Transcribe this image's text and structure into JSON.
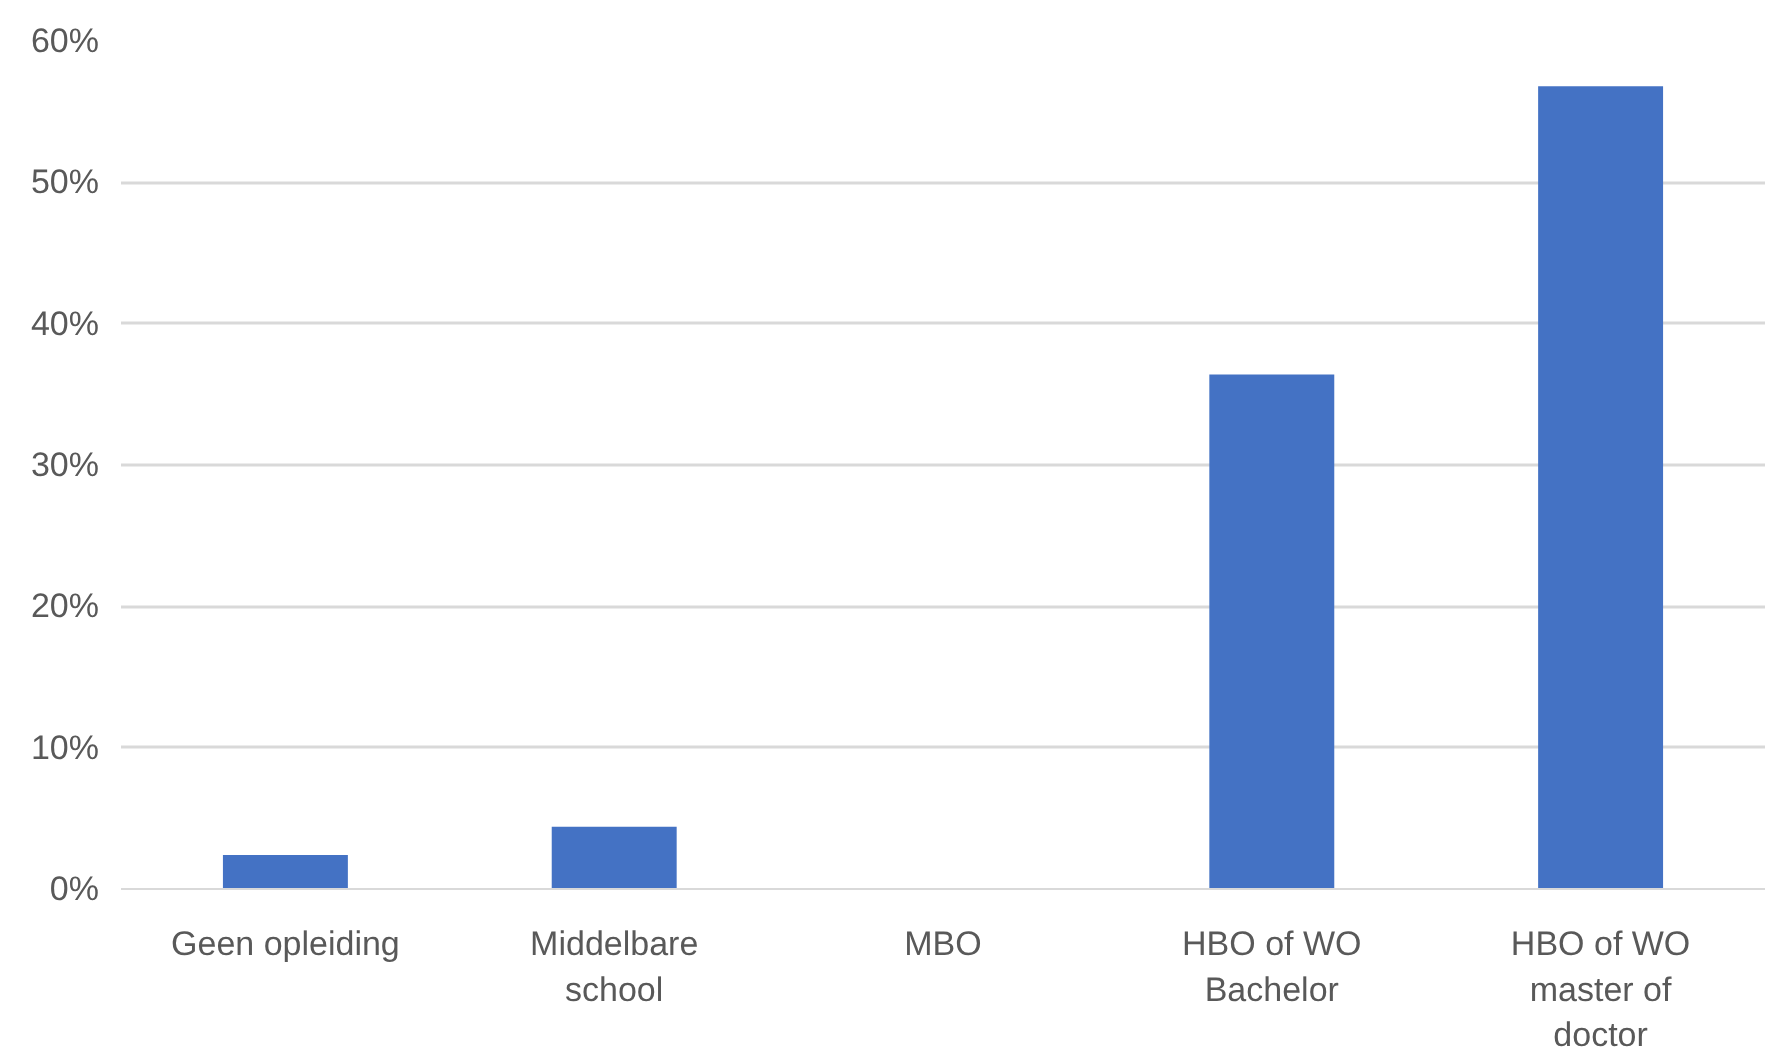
{
  "chart_data": {
    "type": "bar",
    "categories": [
      "Geen opleiding",
      "Middelbare\nschool",
      "MBO",
      "HBO of WO\nBachelor",
      "HBO of WO\nmaster of\ndoctor"
    ],
    "values": [
      2.4,
      4.4,
      0,
      36.4,
      56.8
    ],
    "color": "#4472c4",
    "ylim": [
      0,
      60
    ],
    "yticks": [
      {
        "value": 0,
        "label": "0%"
      },
      {
        "value": 10,
        "label": "10%"
      },
      {
        "value": 20,
        "label": "20%"
      },
      {
        "value": 30,
        "label": "30%"
      },
      {
        "value": 40,
        "label": "40%"
      },
      {
        "value": 50,
        "label": "50%"
      },
      {
        "value": 60,
        "label": "60%"
      }
    ],
    "grid": "y"
  }
}
